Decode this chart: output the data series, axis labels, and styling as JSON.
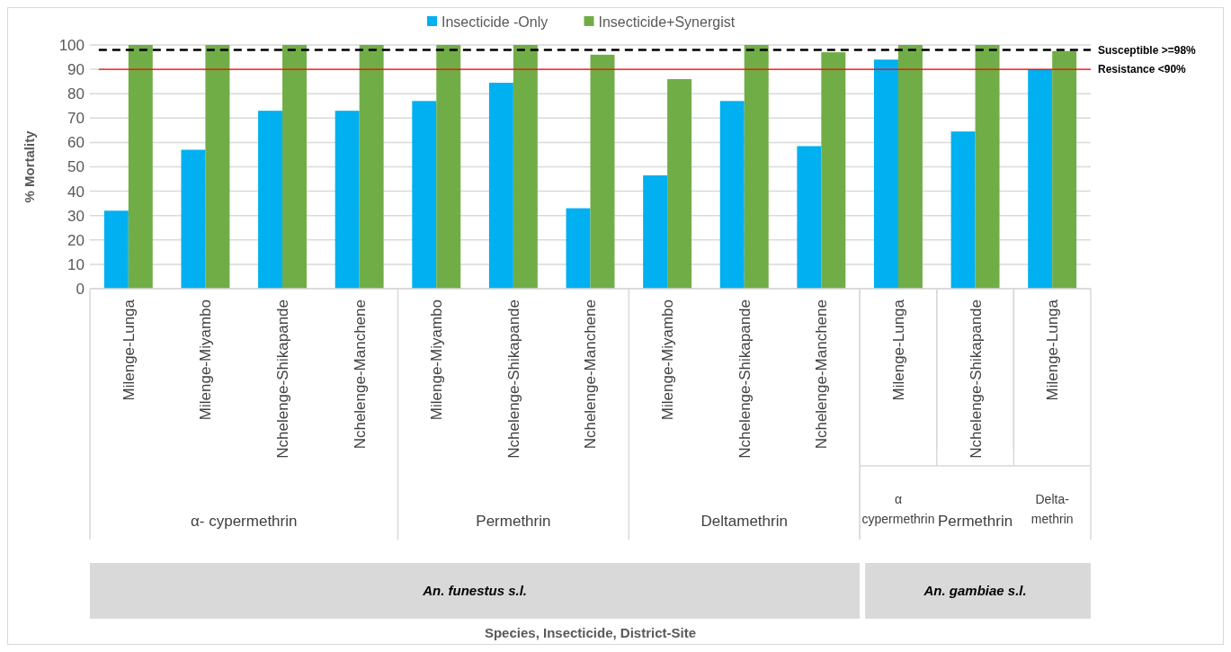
{
  "chart_data": {
    "type": "bar",
    "ylabel": "% Mortality",
    "categories": [
      "Milenge-Lunga",
      "Milenge-Miyambo",
      "Nchelenge-Shikapande",
      "Nchelenge-Manchene",
      "Milenge-Miyambo",
      "Nchelenge-Shikapande",
      "Nchelenge-Manchene",
      "Milenge-Miyambo",
      "Nchelenge-Shikapande",
      "Nchelenge-Manchene",
      "Milenge-Lunga",
      "Nchelenge-Shikapande",
      "Milenge-Lunga"
    ],
    "series": [
      {
        "name": "Insecticide -Only",
        "color": "#00b0f0",
        "values": [
          32,
          57,
          73,
          73,
          77,
          84.5,
          33,
          46.5,
          77,
          58.5,
          94,
          64.5,
          90
        ]
      },
      {
        "name": "Insecticide+Synergist",
        "color": "#70ad47",
        "values": [
          100,
          100,
          100,
          100,
          100,
          100,
          96,
          86,
          100,
          97,
          100,
          100,
          97.5
        ]
      }
    ],
    "ylim": [
      0,
      100
    ],
    "yticks": [
      0,
      10,
      20,
      30,
      40,
      50,
      60,
      70,
      80,
      90,
      100
    ],
    "grid": "y",
    "legend": "top",
    "ref_lines": [
      {
        "axis": "y",
        "value": 98,
        "label": "Susceptible >=98%",
        "color": "#000000",
        "line_style": "dashed"
      },
      {
        "axis": "y",
        "value": 90,
        "label": "Resistance <90%",
        "color": "#ff0000",
        "line_style": "solid"
      }
    ],
    "annotations": [
      "α- cypermethrin",
      "Permethrin",
      "Deltamethrin",
      "α cypermethrin",
      "Permethrin",
      "Delta-methrin",
      "An. funestus s.l.",
      "An. gambiae s.l.",
      "Species, Insecticide, District-Site"
    ]
  }
}
